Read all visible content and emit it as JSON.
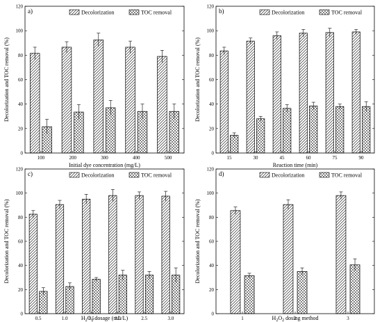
{
  "chart_data": [
    {
      "type": "bar",
      "panel_label": "a)",
      "categories": [
        "100",
        "200",
        "300",
        "400",
        "500"
      ],
      "series": [
        {
          "name": "Decolorization",
          "values": [
            81.5,
            86.5,
            92.5,
            86.5,
            79
          ],
          "errors": [
            5,
            4.5,
            5.5,
            5,
            5
          ]
        },
        {
          "name": "TOC removal",
          "values": [
            21.5,
            33.5,
            37,
            34,
            34
          ],
          "errors": [
            6,
            6,
            6,
            6,
            6
          ]
        }
      ],
      "xlabel": "Initial dye concentration (mg/L)",
      "ylabel": "Decolorization and TOC removal (%)",
      "ylim": [
        0,
        120
      ],
      "yticks": [
        "0",
        "20",
        "40",
        "60",
        "80",
        "100",
        "120"
      ],
      "legend": "top-right"
    },
    {
      "type": "bar",
      "panel_label": "b)",
      "categories": [
        "15",
        "30",
        "45",
        "60",
        "75",
        "90"
      ],
      "series": [
        {
          "name": "Decolorization",
          "values": [
            83.5,
            91.5,
            96,
            98,
            98.5,
            99
          ],
          "errors": [
            3,
            2.5,
            3,
            3,
            3.5,
            2
          ]
        },
        {
          "name": "TOC removal",
          "values": [
            14.5,
            28,
            36.5,
            38.5,
            38,
            38
          ],
          "errors": [
            2,
            2,
            3,
            3,
            2,
            4
          ]
        }
      ],
      "xlabel": "Reaction time (min)",
      "ylabel": "Decolorization and TOC removal (%)",
      "ylim": [
        0,
        120
      ],
      "yticks": [
        "0",
        "20",
        "40",
        "60",
        "80",
        "100",
        "120"
      ],
      "legend": "top-right"
    },
    {
      "type": "bar",
      "panel_label": "c)",
      "categories": [
        "0.5",
        "1.0",
        "1.5",
        "2.0",
        "2.5",
        "3.0"
      ],
      "series": [
        {
          "name": "Decolorization",
          "values": [
            82.5,
            90.5,
            95,
            98,
            98,
            97.5
          ],
          "errors": [
            3,
            3.5,
            4,
            5,
            3,
            4
          ]
        },
        {
          "name": "TOC removal",
          "values": [
            18.5,
            22.5,
            28.5,
            32,
            32,
            32
          ],
          "errors": [
            3,
            3,
            1.5,
            4,
            3,
            6
          ]
        }
      ],
      "xlabel_parts": [
        "H",
        "2",
        "O",
        "2",
        " dosage (mL/L)"
      ],
      "ylabel": "Decolorization and TOC removal (%)",
      "ylim": [
        0,
        120
      ],
      "yticks": [
        "0",
        "20",
        "40",
        "60",
        "80",
        "100",
        "120"
      ],
      "legend": "top-right"
    },
    {
      "type": "bar",
      "panel_label": "d)",
      "categories": [
        "1",
        "2",
        "3"
      ],
      "series": [
        {
          "name": "Decolorization",
          "values": [
            85.5,
            90.5,
            98
          ],
          "errors": [
            3,
            4,
            3
          ]
        },
        {
          "name": "TOC removal",
          "values": [
            31.5,
            35,
            40.5
          ],
          "errors": [
            2,
            3,
            5
          ]
        }
      ],
      "xlabel_parts": [
        "H",
        "2",
        "O",
        "2",
        " dosing method"
      ],
      "ylabel": "Decolorization and TOC removal (%)",
      "ylim": [
        0,
        120
      ],
      "yticks": [
        "0",
        "20",
        "40",
        "60",
        "80",
        "100",
        "120"
      ],
      "legend": "top-right"
    }
  ]
}
